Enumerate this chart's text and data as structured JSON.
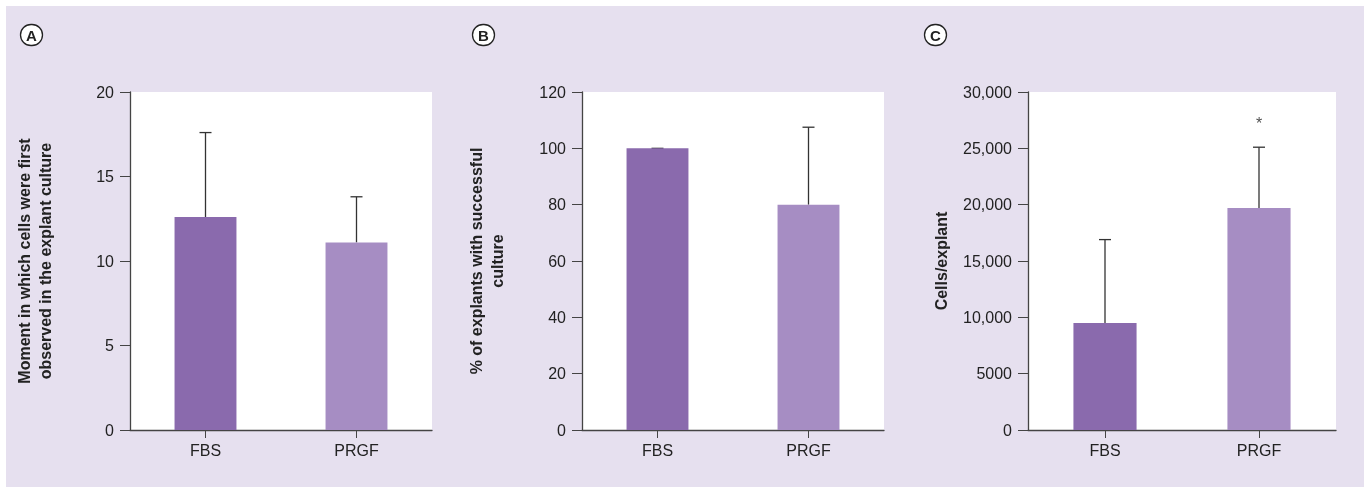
{
  "chart_data": [
    {
      "type": "bar",
      "title": "A",
      "ylabel": "Moment in which cells were first\nobserved in the explant culture",
      "categories": [
        "FBS",
        "PRGF"
      ],
      "values": [
        12.6,
        11.1
      ],
      "colors": [
        "#8a6aad",
        "#a68dc3"
      ],
      "errors": [
        [
          12.6,
          17.6
        ],
        [
          11.1,
          13.8
        ]
      ],
      "ylim": [
        0,
        20
      ],
      "yticks": [
        0,
        5,
        10,
        15,
        20
      ],
      "grid": false
    },
    {
      "type": "bar",
      "title": "B",
      "ylabel": "% of explants with successful\nculture",
      "categories": [
        "FBS",
        "PRGF"
      ],
      "values": [
        100,
        80
      ],
      "colors": [
        "#8a6aad",
        "#a68dc3"
      ],
      "errors": [
        [
          100,
          100
        ],
        [
          80,
          107.5
        ]
      ],
      "ylim": [
        0,
        120
      ],
      "yticks": [
        0,
        20,
        40,
        60,
        80,
        100,
        120
      ],
      "grid": false
    },
    {
      "type": "bar",
      "title": "C",
      "ylabel": "Cells/explant",
      "categories": [
        "FBS",
        "PRGF"
      ],
      "values": [
        9500,
        19700
      ],
      "colors": [
        "#8a6aad",
        "#a68dc3"
      ],
      "errors": [
        [
          9500,
          16900
        ],
        [
          19700,
          25100
        ]
      ],
      "ylim": [
        0,
        30000
      ],
      "yticks": [
        {
          "value": 0,
          "label": "0"
        },
        {
          "value": 5000,
          "label": "5000"
        },
        {
          "value": 10000,
          "label": "10,000"
        },
        {
          "value": 15000,
          "label": "15,000"
        },
        {
          "value": 20000,
          "label": "20,000"
        },
        {
          "value": 25000,
          "label": "25,000"
        },
        {
          "value": 30000,
          "label": "30,000"
        }
      ],
      "grid": false,
      "annotations": [
        {
          "text": "*",
          "x": "PRGF",
          "y": 25100
        }
      ]
    }
  ]
}
